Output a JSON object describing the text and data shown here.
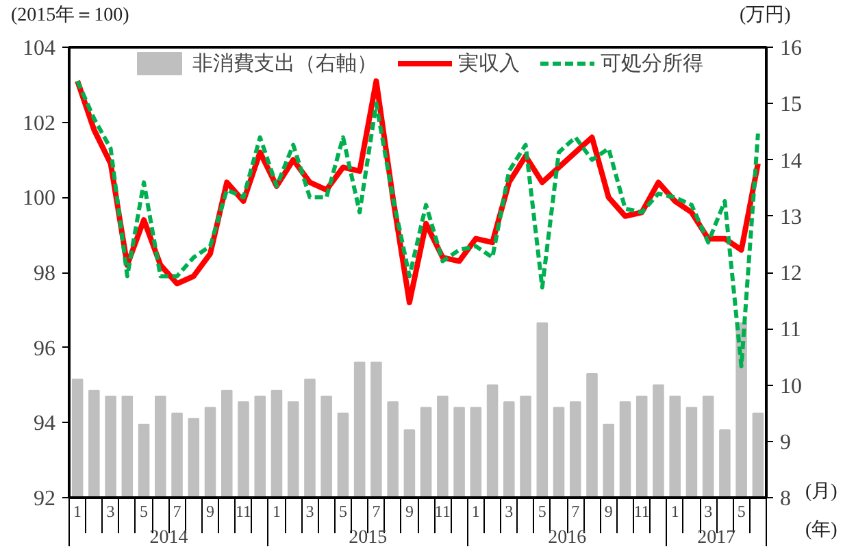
{
  "chart_data": {
    "type": "line",
    "ylabel": "(2015年＝100)",
    "y2label": "(万円)",
    "xlabel": "(月)",
    "categories": [
      "1",
      null,
      "3",
      null,
      "5",
      null,
      "7",
      null,
      "9",
      null,
      "11",
      null,
      "1",
      null,
      "3",
      null,
      "5",
      null,
      "7",
      null,
      "9",
      null,
      "11",
      null,
      "1",
      null,
      "3",
      null,
      "5",
      null,
      "7",
      null,
      "9",
      null,
      "11",
      null,
      "1",
      null,
      "3",
      null,
      "5",
      null
    ],
    "series": [
      {
        "name": "非消費支出（右軸）",
        "type": "bar",
        "axis": "y2",
        "color": "#bfbfbf",
        "values": [
          10.1,
          9.9,
          9.8,
          9.8,
          9.3,
          9.8,
          9.5,
          9.4,
          9.6,
          9.9,
          9.7,
          9.8,
          9.9,
          9.7,
          10.1,
          9.8,
          9.5,
          10.4,
          10.4,
          9.7,
          9.2,
          9.6,
          9.8,
          9.6,
          9.6,
          10.0,
          9.7,
          9.8,
          11.1,
          9.6,
          9.7,
          10.2,
          9.3,
          9.7,
          9.8,
          10.0,
          9.8,
          9.6,
          9.8,
          9.2,
          11.1,
          9.5
        ]
      },
      {
        "name": "実収入",
        "line_style": "solid",
        "color": "#ff0000",
        "values": [
          103.1,
          101.8,
          100.9,
          98.2,
          99.4,
          98.2,
          97.7,
          97.9,
          98.5,
          100.4,
          99.9,
          101.2,
          100.3,
          101.0,
          100.4,
          100.2,
          100.8,
          100.7,
          103.1,
          100.0,
          97.2,
          99.3,
          98.4,
          98.3,
          98.9,
          98.8,
          100.4,
          101.1,
          100.4,
          100.8,
          101.2,
          101.6,
          100.0,
          99.5,
          99.6,
          100.4,
          99.9,
          99.6,
          98.9,
          98.9,
          98.6,
          100.9
        ]
      },
      {
        "name": "可処分所得",
        "line_style": "dashed",
        "color": "#00b050",
        "values": [
          103.1,
          102.1,
          101.3,
          97.9,
          100.4,
          97.9,
          97.9,
          98.4,
          98.7,
          100.2,
          100.0,
          101.6,
          100.3,
          101.4,
          100.0,
          100.0,
          101.6,
          99.6,
          102.5,
          100.0,
          97.9,
          99.8,
          98.3,
          98.6,
          98.7,
          98.4,
          100.7,
          101.4,
          97.6,
          101.2,
          101.6,
          101.0,
          101.3,
          99.7,
          99.6,
          100.1,
          100.0,
          99.8,
          98.8,
          99.9,
          95.5,
          101.7
        ]
      }
    ],
    "ylim": [
      92,
      104
    ],
    "yticks": [
      92,
      94,
      96,
      98,
      100,
      102,
      104
    ],
    "y2lim": [
      8,
      16
    ],
    "y2ticks": [
      8,
      9,
      10,
      11,
      12,
      13,
      14,
      15,
      16
    ],
    "annotations": [
      "(年)",
      "2014",
      "2015",
      "2016",
      "2017"
    ],
    "legend": "top",
    "grid": false,
    "marker": "none"
  }
}
